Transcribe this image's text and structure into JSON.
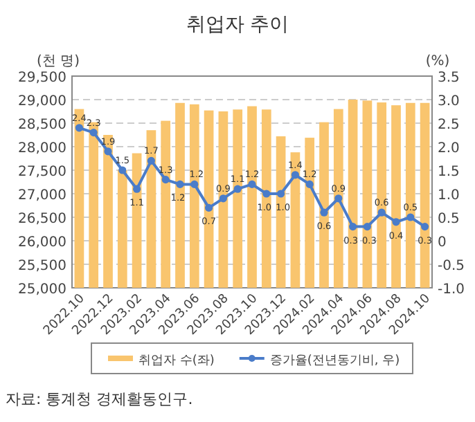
{
  "chart_data": {
    "type": "bar",
    "title": "취업자 추이",
    "ylabel": "(천 명)",
    "y2label": "(%)",
    "categories": [
      "2022.10",
      null,
      "2022.12",
      null,
      "2023.02",
      null,
      "2023.04",
      null,
      "2023.06",
      null,
      "2023.08",
      null,
      "2023.10",
      null,
      "2023.12",
      null,
      "2024.02",
      null,
      "2024.04",
      null,
      "2024.06",
      null,
      "2024.08",
      null,
      "2024.10"
    ],
    "series": [
      {
        "name": "취업자 수(좌)",
        "color": "#f9c56e",
        "values": [
          28800,
          28520,
          28250,
          27500,
          27860,
          28350,
          28550,
          28930,
          28900,
          28770,
          28750,
          28790,
          28860,
          28790,
          28220,
          27880,
          28190,
          28520,
          28800,
          29000,
          28980,
          28940,
          28880,
          28930,
          28930
        ]
      },
      {
        "name": "증가율(전년동기비, 우)",
        "type": "line",
        "axis": "y2",
        "color": "#4a7cc9",
        "marker": "circle",
        "values": [
          2.4,
          2.3,
          1.9,
          1.5,
          1.1,
          1.7,
          1.3,
          1.2,
          1.2,
          0.7,
          0.9,
          1.1,
          1.2,
          1.0,
          1.0,
          1.4,
          1.2,
          0.6,
          0.9,
          0.3,
          0.3,
          0.6,
          0.4,
          0.5,
          0.3
        ],
        "value_labels": [
          "2.4",
          "2.3",
          "1.9",
          "1.5",
          "1.1",
          "1.7",
          "1.3",
          "1.2",
          "1.2",
          "0.7",
          "0.9",
          "1.1",
          "1.2",
          "1.0",
          "1.0",
          "1.4",
          "1.2",
          "0.6",
          "0.9",
          "0.3",
          "0.3",
          "0.6",
          "0.4",
          "0.5",
          "0.3"
        ]
      }
    ],
    "ylim": [
      25000,
      29500
    ],
    "yticks": [
      {
        "value": 25000,
        "label": "25,000"
      },
      {
        "value": 25500,
        "label": "25,500"
      },
      {
        "value": 26000,
        "label": "26,000"
      },
      {
        "value": 26500,
        "label": "26,500"
      },
      {
        "value": 27000,
        "label": "27,000"
      },
      {
        "value": 27500,
        "label": "27,500"
      },
      {
        "value": 28000,
        "label": "28,000"
      },
      {
        "value": 28500,
        "label": "28,500"
      },
      {
        "value": 29000,
        "label": "29,000"
      },
      {
        "value": 29500,
        "label": "29,500"
      }
    ],
    "y2lim": [
      -1.0,
      3.5
    ],
    "y2ticks": [
      {
        "value": -1,
        "label": "-1.0"
      },
      {
        "value": -0.5,
        "label": "-0.5"
      },
      0,
      {
        "value": 0.5,
        "label": "0.5"
      },
      {
        "value": 1,
        "label": "1.0"
      },
      {
        "value": 1.5,
        "label": "1.5"
      },
      {
        "value": 2,
        "label": "2.0"
      },
      {
        "value": 2.5,
        "label": "2.5"
      },
      {
        "value": 3,
        "label": "3.0"
      },
      {
        "value": 3.5,
        "label": "3.5"
      }
    ],
    "grid": "y",
    "legend": "bottom",
    "annotations": [
      "자료: 통계청 경제활동인구."
    ]
  }
}
